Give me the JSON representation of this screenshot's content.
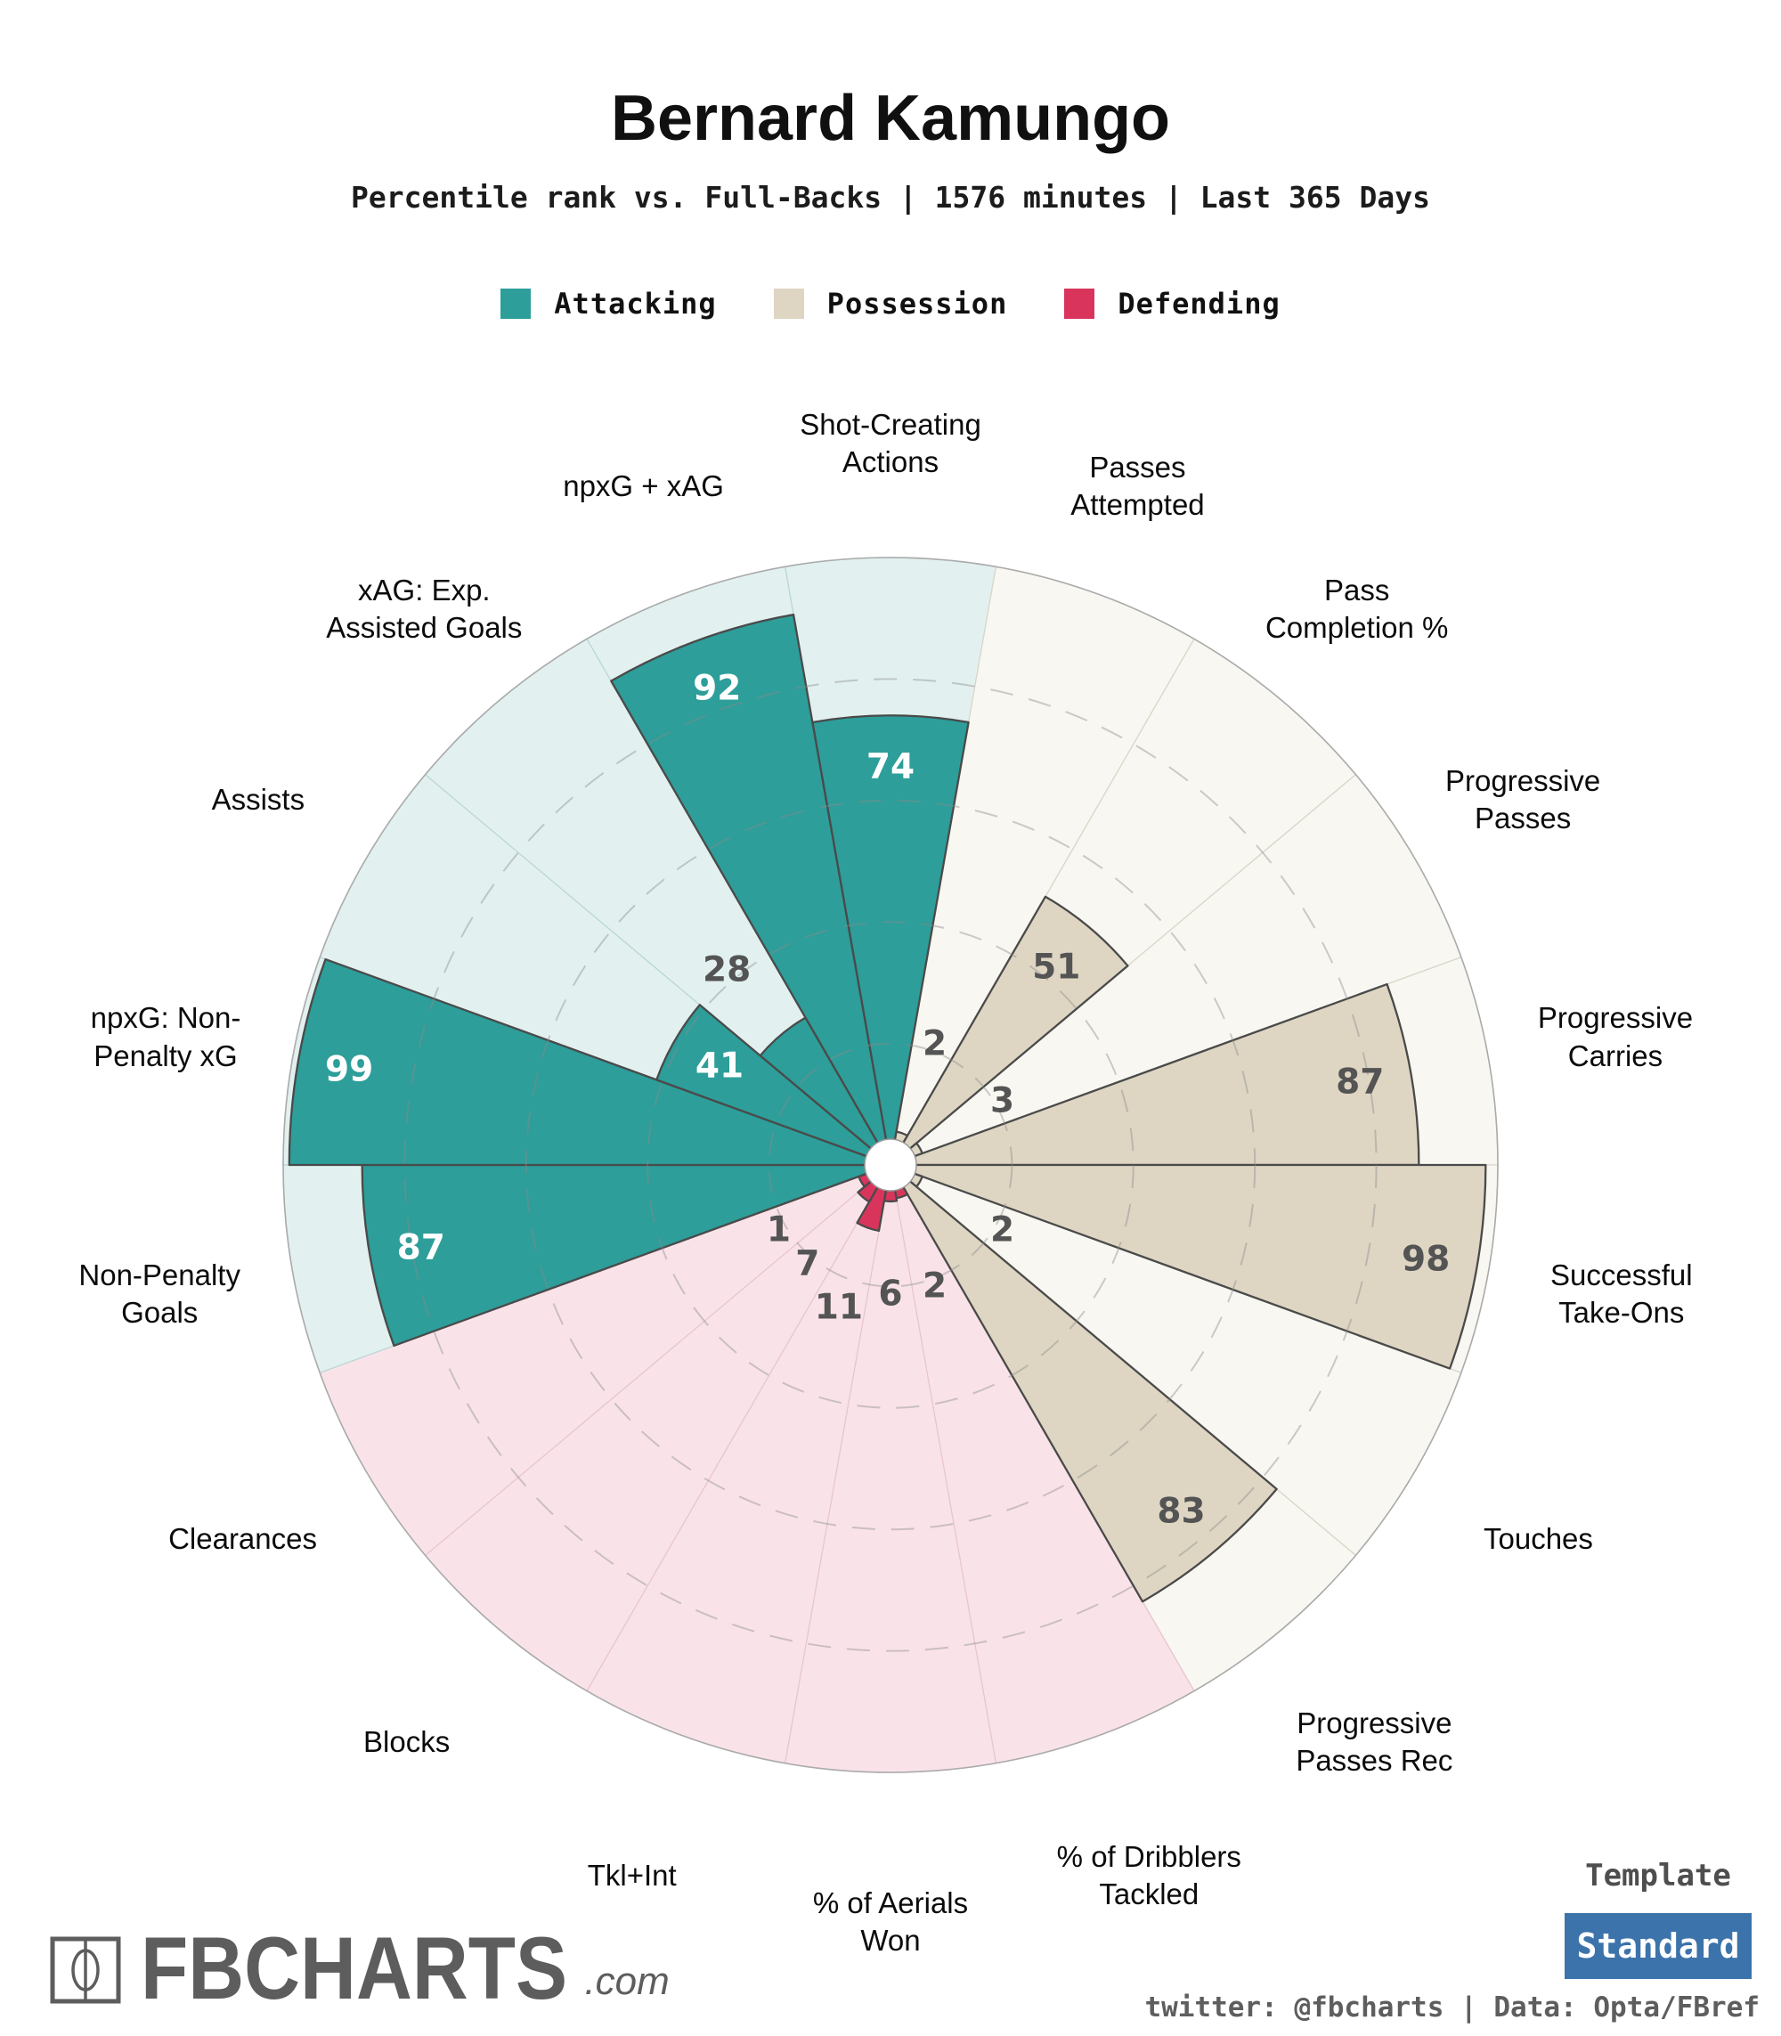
{
  "header": {
    "title": "Bernard Kamungo",
    "subtitle": "Percentile rank vs. Full-Backs | 1576 minutes | Last 365 Days"
  },
  "legend": {
    "items": [
      {
        "label": "Attacking",
        "color": "#2D9E9A"
      },
      {
        "label": "Possession",
        "color": "#DED6C3"
      },
      {
        "label": "Defending",
        "color": "#D9355C"
      }
    ]
  },
  "chart_data": {
    "type": "pie",
    "subtype": "pizza-percentile-polar-bars",
    "title": "Bernard Kamungo",
    "subtitle": "Percentile rank vs. Full-Backs | 1576 minutes | Last 365 Days",
    "rlim": [
      0,
      100
    ],
    "rings": [
      20,
      40,
      60,
      80
    ],
    "grid": "dashed-circles",
    "slice_angle_deg": 20,
    "start_at_top": true,
    "slices": [
      {
        "label": "Shot-Creating\nActions",
        "value": 74,
        "group": "Attacking"
      },
      {
        "label": "Passes\nAttempted",
        "value": 2,
        "group": "Possession"
      },
      {
        "label": "Pass\nCompletion %",
        "value": 51,
        "group": "Possession"
      },
      {
        "label": "Progressive\nPasses",
        "value": 3,
        "group": "Possession"
      },
      {
        "label": "Progressive\nCarries",
        "value": 87,
        "group": "Possession"
      },
      {
        "label": "Successful\nTake-Ons",
        "value": 98,
        "group": "Possession"
      },
      {
        "label": "Touches",
        "value": 2,
        "group": "Possession"
      },
      {
        "label": "Progressive\nPasses Rec",
        "value": 83,
        "group": "Possession"
      },
      {
        "label": "% of Dribblers\nTackled",
        "value": 2,
        "group": "Defending"
      },
      {
        "label": "% of Aerials\nWon",
        "value": 6,
        "group": "Defending"
      },
      {
        "label": "Tkl+Int",
        "value": 11,
        "group": "Defending"
      },
      {
        "label": "Blocks",
        "value": 7,
        "group": "Defending"
      },
      {
        "label": "Clearances",
        "value": 1,
        "group": "Defending"
      },
      {
        "label": "Non-Penalty\nGoals",
        "value": 87,
        "group": "Attacking"
      },
      {
        "label": "npxG: Non-\nPenalty xG",
        "value": 99,
        "group": "Attacking"
      },
      {
        "label": "Assists",
        "value": 41,
        "group": "Attacking"
      },
      {
        "label": "xAG: Exp.\nAssisted Goals",
        "value": 28,
        "group": "Attacking"
      },
      {
        "label": "npxG + xAG",
        "value": 92,
        "group": "Attacking"
      }
    ],
    "groups": {
      "Attacking": {
        "fill": "#2D9E9A",
        "pale": "#E2F1F0",
        "pale_stroke": "#BCD7D6",
        "value_text_on_fill": "#FFFFFF"
      },
      "Possession": {
        "fill": "#DED6C3",
        "pale": "#F8F7F1",
        "pale_stroke": "#DAD7C9",
        "value_text_on_fill": "#545454"
      },
      "Defending": {
        "fill": "#D9355C",
        "pale": "#F9E3E9",
        "pale_stroke": "#E9C6D1",
        "value_text_on_fill": "#545454"
      }
    },
    "style": {
      "wedge_stroke": "#4A4A4A",
      "ring_color": "#8A8A8A",
      "outer_circle": "#ABABAB",
      "hole_fill": "#FFFFFF",
      "hole_stroke": "#999999",
      "value_text_dark": "#545454"
    }
  },
  "footer": {
    "logo_text": "FBCHARTS",
    "logo_suffix": ".com",
    "template_label": "Template",
    "template_value": "Standard",
    "template_button_color": "#3C73AA",
    "credits": "twitter: @fbcharts | Data: Opta/FBref"
  }
}
